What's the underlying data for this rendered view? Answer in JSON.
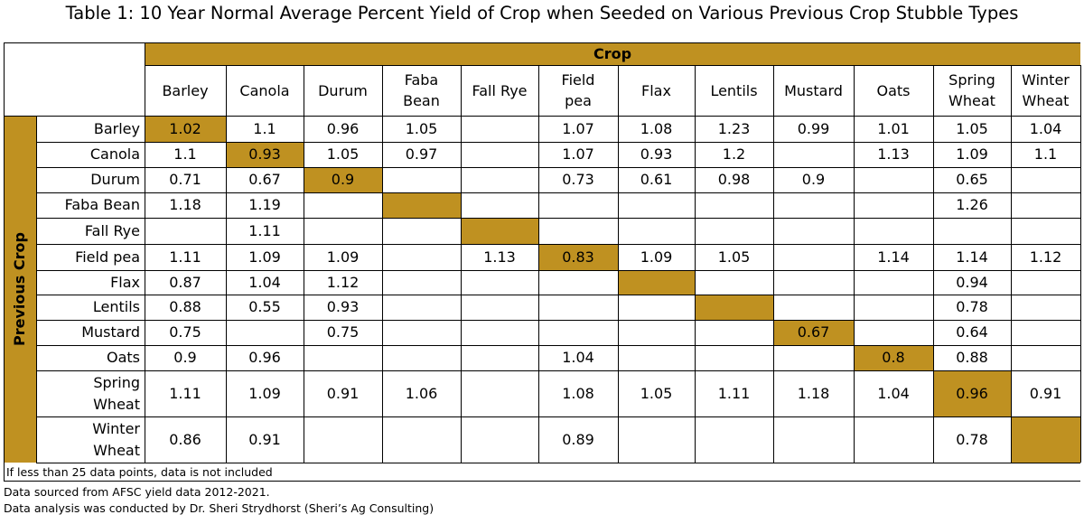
{
  "title": "Table 1: 10 Year Normal Average Percent Yield of Crop when Seeded on Various Previous Crop Stubble Types",
  "theme": {
    "highlight": "#bf9121"
  },
  "col_group_label": "Crop",
  "row_group_label": "Previous Crop",
  "columns": [
    "Barley",
    "Canola",
    "Durum",
    "Faba\nBean",
    "Fall Rye",
    "Field\npea",
    "Flax",
    "Lentils",
    "Mustard",
    "Oats",
    "Spring\nWheat",
    "Winter\nWheat"
  ],
  "rows": [
    {
      "label": "Barley",
      "cells": [
        "1.02",
        "1.1",
        "0.96",
        "1.05",
        "",
        "1.07",
        "1.08",
        "1.23",
        "0.99",
        "1.01",
        "1.05",
        "1.04"
      ]
    },
    {
      "label": "Canola",
      "cells": [
        "1.1",
        "0.93",
        "1.05",
        "0.97",
        "",
        "1.07",
        "0.93",
        "1.2",
        "",
        "1.13",
        "1.09",
        "1.1"
      ]
    },
    {
      "label": "Durum",
      "cells": [
        "0.71",
        "0.67",
        "0.9",
        "",
        "",
        "0.73",
        "0.61",
        "0.98",
        "0.9",
        "",
        "0.65",
        ""
      ]
    },
    {
      "label": "Faba Bean",
      "cells": [
        "1.18",
        "1.19",
        "",
        "",
        "",
        "",
        "",
        "",
        "",
        "",
        "1.26",
        ""
      ]
    },
    {
      "label": "Fall Rye",
      "cells": [
        "",
        "1.11",
        "",
        "",
        "",
        "",
        "",
        "",
        "",
        "",
        "",
        ""
      ]
    },
    {
      "label": "Field pea",
      "cells": [
        "1.11",
        "1.09",
        "1.09",
        "",
        "1.13",
        "0.83",
        "1.09",
        "1.05",
        "",
        "1.14",
        "1.14",
        "1.12"
      ]
    },
    {
      "label": "Flax",
      "cells": [
        "0.87",
        "1.04",
        "1.12",
        "",
        "",
        "",
        "",
        "",
        "",
        "",
        "0.94",
        ""
      ]
    },
    {
      "label": "Lentils",
      "cells": [
        "0.88",
        "0.55",
        "0.93",
        "",
        "",
        "",
        "",
        "",
        "",
        "",
        "0.78",
        ""
      ]
    },
    {
      "label": "Mustard",
      "cells": [
        "0.75",
        "",
        "0.75",
        "",
        "",
        "",
        "",
        "",
        "0.67",
        "",
        "0.64",
        ""
      ]
    },
    {
      "label": "Oats",
      "cells": [
        "0.9",
        "0.96",
        "",
        "",
        "",
        "1.04",
        "",
        "",
        "",
        "0.8",
        "0.88",
        ""
      ]
    },
    {
      "label": "Spring\nWheat",
      "cells": [
        "1.11",
        "1.09",
        "0.91",
        "1.06",
        "",
        "1.08",
        "1.05",
        "1.11",
        "1.18",
        "1.04",
        "0.96",
        "0.91"
      ]
    },
    {
      "label": "Winter\nWheat",
      "cells": [
        "0.86",
        "0.91",
        "",
        "",
        "",
        "0.89",
        "",
        "",
        "",
        "",
        "0.78",
        ""
      ]
    }
  ],
  "notes": [
    "If less than 25 data points, data is not included",
    "Data sourced from AFSC yield data 2012-2021.",
    "Data analysis was conducted by Dr. Sheri Strydhorst (Sheri’s Ag Consulting)"
  ]
}
